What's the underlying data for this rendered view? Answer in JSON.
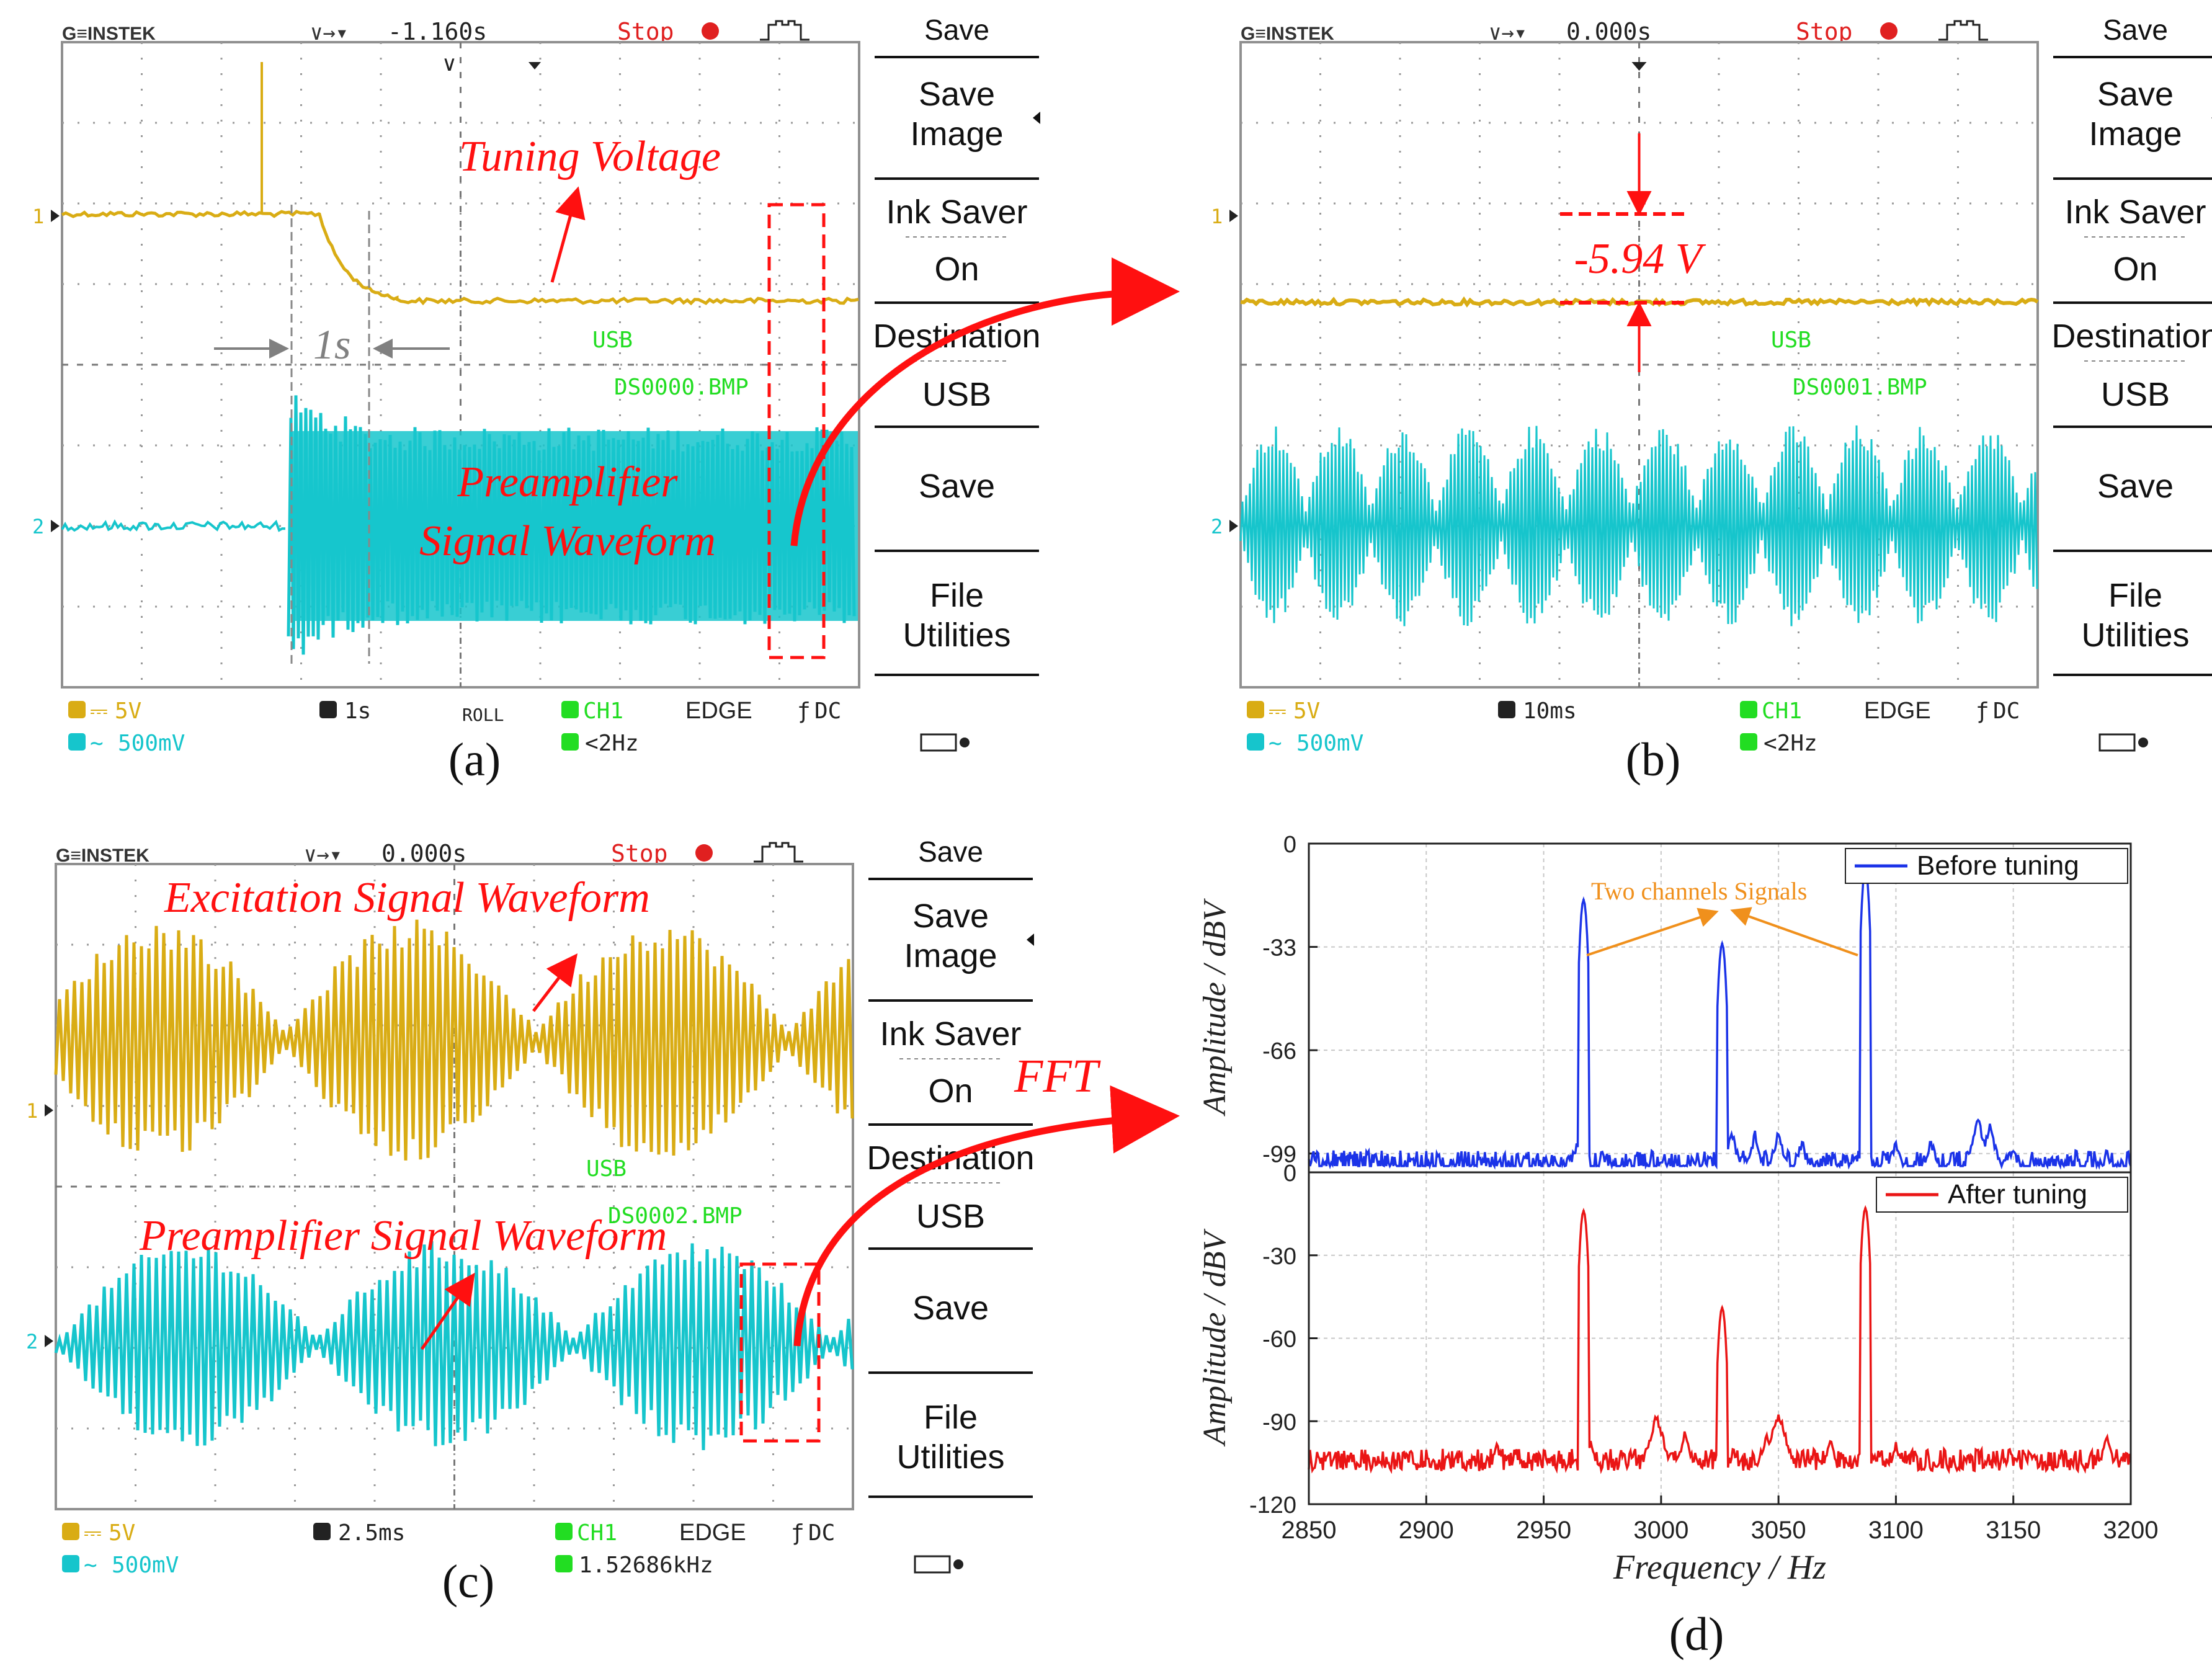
{
  "colors": {
    "ch1": "#d9ac14",
    "ch2": "#16c5cc",
    "green": "#22dd22",
    "annotation": "#ff1010",
    "orange": "#f0901c",
    "before": "#1b33e8",
    "after": "#ea1515",
    "grid": "#9a9a9a"
  },
  "panels": [
    {
      "label": "(a)",
      "brand": "G≡INSTEK",
      "time_offset": "-1.160s",
      "state": "Stop",
      "ch1_marker": "1",
      "ch2_marker": "2",
      "ch1_scale": "5V",
      "ch2_scale": "500mV",
      "timebase": "1s",
      "mode": "ROLL",
      "trigger_source": "CH1",
      "trigger_type": "EDGE",
      "coupling": "DC",
      "freq": "<2Hz",
      "usb": "USB",
      "file": "DS0000.BMP",
      "annotations": [
        "Tuning Voltage",
        "Preamplifier",
        "Signal Waveform",
        "1s"
      ]
    },
    {
      "label": "(b)",
      "brand": "G≡INSTEK",
      "time_offset": "0.000s",
      "state": "Stop",
      "ch1_marker": "1",
      "ch2_marker": "2",
      "ch1_scale": "5V",
      "ch2_scale": "500mV",
      "timebase": "10ms",
      "trigger_source": "CH1",
      "trigger_type": "EDGE",
      "coupling": "DC",
      "freq": "<2Hz",
      "usb": "USB",
      "file": "DS0001.BMP",
      "annotations": [
        "-5.94 V"
      ]
    },
    {
      "label": "(c)",
      "brand": "G≡INSTEK",
      "time_offset": "0.000s",
      "state": "Stop",
      "ch1_marker": "1",
      "ch2_marker": "2",
      "ch1_scale": "5V",
      "ch2_scale": "500mV",
      "timebase": "2.5ms",
      "trigger_source": "CH1",
      "trigger_type": "EDGE",
      "coupling": "DC",
      "freq": "1.52686kHz",
      "usb": "USB",
      "file": "DS0002.BMP",
      "annotations": [
        "Excitation Signal Waveform",
        "Preamplifier Signal Waveform"
      ]
    }
  ],
  "menu": {
    "title": "Save",
    "items": [
      "Save",
      "Image",
      "Ink Saver",
      "On",
      "Destination",
      "USB",
      "Save",
      "File",
      "Utilities"
    ]
  },
  "fft_label": "FFT",
  "chart_data": {
    "type": "line",
    "label": "(d)",
    "xlabel": "Frequency / Hz",
    "ylabel": "Amplitude / dBV",
    "xlim": [
      2850,
      3200
    ],
    "xticks": [
      2850,
      2900,
      2950,
      3000,
      3050,
      3100,
      3150,
      3200
    ],
    "grid": true,
    "subplots": [
      {
        "series": [
          {
            "name": "Before tuning",
            "peaks": [
              [
                2967,
                -18
              ],
              [
                3026,
                -32
              ],
              [
                3087,
                -8
              ]
            ],
            "minor_peaks": [
              [
                2964,
                -96
              ],
              [
                2975,
                -99
              ],
              [
                3030,
                -92
              ],
              [
                3040,
                -93
              ],
              [
                3050,
                -92
              ],
              [
                3060,
                -95
              ],
              [
                3100,
                -95
              ],
              [
                3115,
                -95
              ],
              [
                3135,
                -88
              ],
              [
                3140,
                -90
              ],
              [
                3150,
                -97
              ],
              [
                3190,
                -98
              ]
            ],
            "noise_floor": -102
          }
        ],
        "ylim": [
          -105,
          0
        ],
        "yticks": [
          0,
          -33,
          -66,
          -99
        ],
        "legend": "top-right",
        "annotation": "Two channels Signals"
      },
      {
        "series": [
          {
            "name": "After tuning",
            "peaks": [
              [
                2967,
                -14
              ],
              [
                3026,
                -49
              ],
              [
                3087,
                -13
              ]
            ],
            "minor_peaks": [
              [
                2930,
                -99
              ],
              [
                2970,
                -97
              ],
              [
                2998,
                -88
              ],
              [
                3010,
                -95
              ],
              [
                3045,
                -95
              ],
              [
                3050,
                -87
              ],
              [
                3072,
                -97
              ],
              [
                3100,
                -98
              ],
              [
                3190,
                -96
              ]
            ],
            "noise_floor": -104
          }
        ],
        "ylim": [
          -120,
          0
        ],
        "yticks": [
          0,
          -30,
          -60,
          -90,
          -120
        ],
        "legend": "top-right"
      }
    ]
  }
}
